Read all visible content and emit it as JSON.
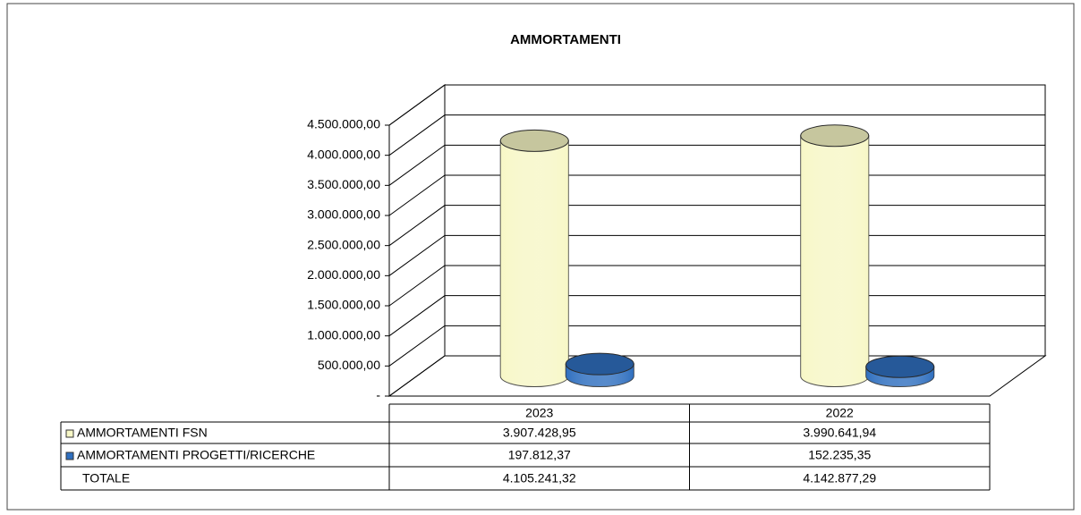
{
  "chart_data": {
    "type": "cylinder",
    "title": "AMMORTAMENTI",
    "categories": [
      "2023",
      "2022"
    ],
    "series": [
      {
        "name": "AMMORTAMENTI FSN",
        "color": "#f7f7c6",
        "values": [
          3907428.95,
          3990641.94
        ],
        "value_labels": [
          "3.907.428,95",
          "3.990.641,94"
        ]
      },
      {
        "name": "AMMORTAMENTI PROGETTI/RICERCHE",
        "color": "#2f6fbf",
        "values": [
          197812.37,
          152235.35
        ],
        "value_labels": [
          "197.812,37",
          "152.235,35"
        ]
      }
    ],
    "totals": {
      "name": "TOTALE",
      "values": [
        4105241.32,
        4142877.29
      ],
      "value_labels": [
        "4.105.241,32",
        "4.142.877,29"
      ]
    },
    "ylim": [
      0,
      4500000
    ],
    "yticks": [
      {
        "value": 0,
        "label": "-"
      },
      {
        "value": 500000,
        "label": "500.000,00"
      },
      {
        "value": 1000000,
        "label": "1.000.000,00"
      },
      {
        "value": 1500000,
        "label": "1.500.000,00"
      },
      {
        "value": 2000000,
        "label": "2.000.000,00"
      },
      {
        "value": 2500000,
        "label": "2.500.000,00"
      },
      {
        "value": 3000000,
        "label": "3.000.000,00"
      },
      {
        "value": 3500000,
        "label": "3.500.000,00"
      },
      {
        "value": 4000000,
        "label": "4.000.000,00"
      },
      {
        "value": 4500000,
        "label": "4.500.000,00"
      }
    ],
    "grid": true
  }
}
